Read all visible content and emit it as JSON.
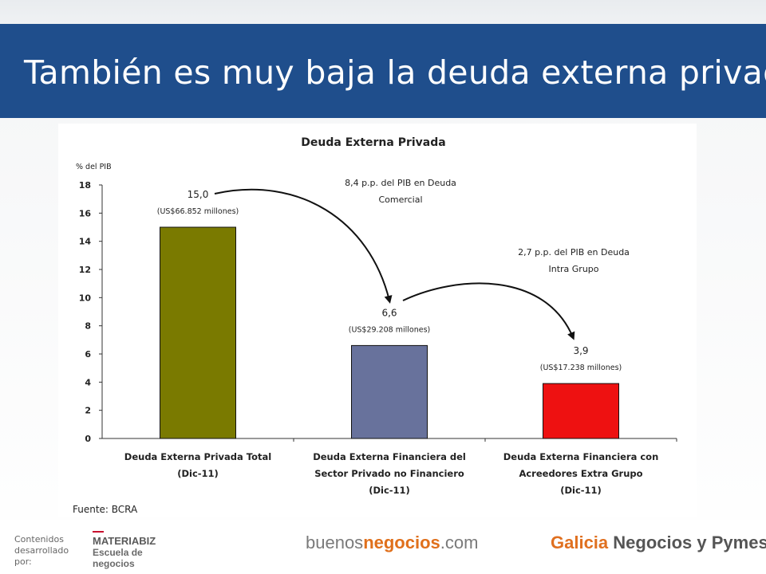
{
  "slide": {
    "title": "También es muy baja la deuda externa privada"
  },
  "chart_data": {
    "type": "bar",
    "title": "Deuda Externa Privada",
    "ylabel": "% del PIB",
    "ylim": [
      0,
      18
    ],
    "yticks": [
      0,
      2,
      4,
      6,
      8,
      10,
      12,
      14,
      16,
      18
    ],
    "grid": false,
    "categories": [
      [
        "Deuda Externa Privada Total",
        "(Dic-11)"
      ],
      [
        "Deuda Externa Financiera del",
        "Sector Privado no Financiero",
        "(Dic-11)"
      ],
      [
        "Deuda Externa Financiera con",
        "Acreedores Extra Grupo",
        "(Dic-11)"
      ]
    ],
    "values": [
      15.0,
      6.6,
      3.9
    ],
    "value_labels": [
      "15,0",
      "6,6",
      "3,9"
    ],
    "amount_labels": [
      "(US$66.852 millones)",
      "(US$29.208 millones)",
      "(US$17.238 millones)"
    ],
    "colors": [
      "#7a7a00",
      "#68729c",
      "#ee1111"
    ],
    "annotations": [
      {
        "lines": [
          "8,4 p.p. del PIB en Deuda",
          "Comercial"
        ]
      },
      {
        "lines": [
          "2,7 p.p. del PIB en Deuda",
          "Intra Grupo"
        ]
      }
    ],
    "source": "Fuente: BCRA"
  },
  "footer": {
    "contenidos": "Contenidos desarrollado por:",
    "materiabiz": "MATERIABIZ",
    "escuela": "Escuela de",
    "negocios": "negocios",
    "bn_buenos": "buenos",
    "bn_negocios": "negocios",
    "bn_com": ".com",
    "galicia": "Galicia",
    "galicia_rest": " Negocios y Pymes"
  }
}
